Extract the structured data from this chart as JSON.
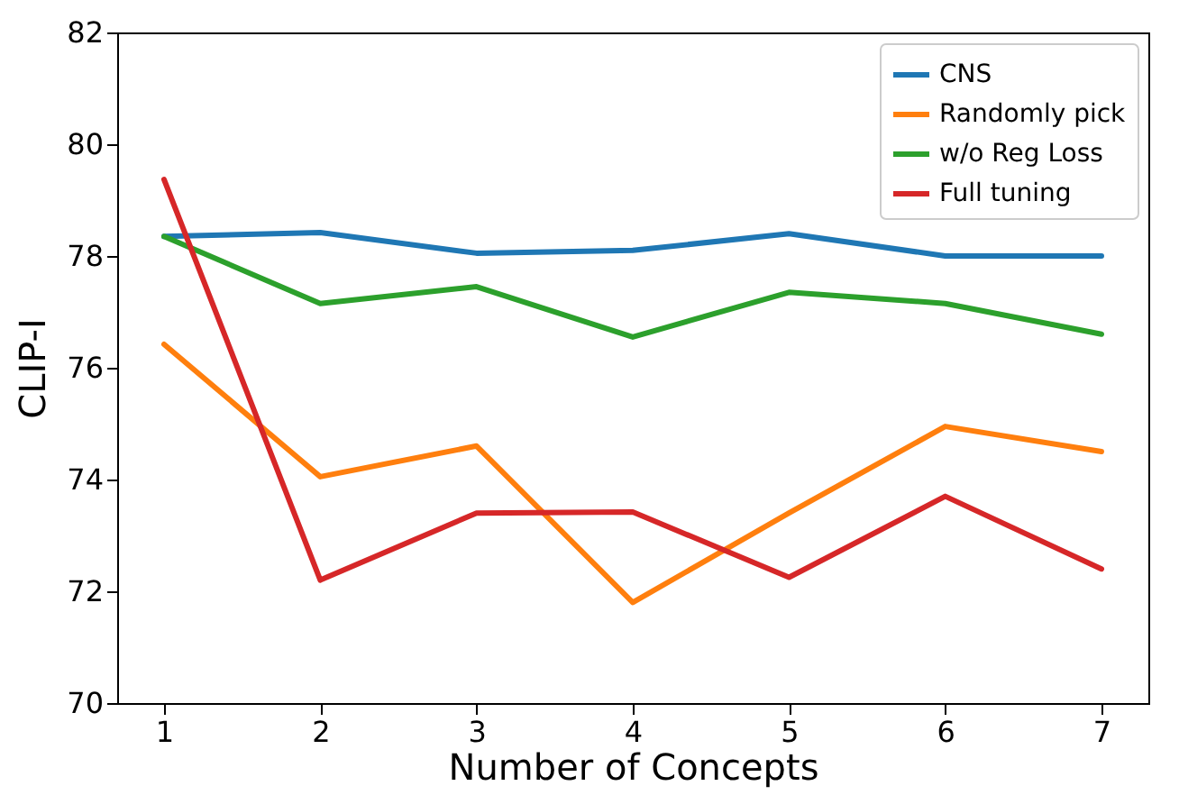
{
  "chart_data": {
    "type": "line",
    "xlabel": "Number of Concepts",
    "ylabel": "CLIP-I",
    "x": [
      1,
      2,
      3,
      4,
      5,
      6,
      7
    ],
    "xlim": [
      0.7,
      7.3
    ],
    "xticks": [
      1,
      2,
      3,
      4,
      5,
      6,
      7
    ],
    "ylim": [
      70,
      82
    ],
    "yticks": [
      70,
      72,
      74,
      76,
      78,
      80,
      82
    ],
    "grid": false,
    "legend": "top right",
    "marker": "none",
    "line_style": "solid",
    "series": [
      {
        "name": "CNS",
        "color": "#1f77b4",
        "values": [
          78.35,
          78.42,
          78.05,
          78.1,
          78.4,
          78.0,
          78.0
        ]
      },
      {
        "name": "Randomly pick",
        "color": "#ff7f0e",
        "values": [
          76.42,
          74.05,
          74.6,
          71.8,
          73.4,
          74.95,
          74.5
        ]
      },
      {
        "name": "w/o Reg Loss",
        "color": "#2ca02c",
        "values": [
          78.35,
          77.15,
          77.45,
          76.55,
          77.35,
          77.15,
          76.6
        ]
      },
      {
        "name": "Full tuning",
        "color": "#d62728",
        "values": [
          79.37,
          72.2,
          73.4,
          73.42,
          72.25,
          73.7,
          72.4
        ]
      }
    ]
  }
}
